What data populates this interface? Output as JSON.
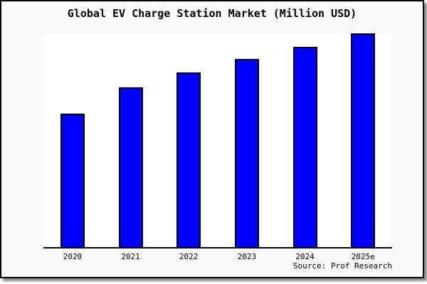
{
  "chart_data": {
    "type": "bar",
    "title": "Global EV Charge Station Market (Million USD)",
    "categories": [
      "2020",
      "2021",
      "2022",
      "2023",
      "2024",
      "2025e"
    ],
    "values": [
      188,
      225,
      246,
      265,
      282,
      301
    ],
    "value_scale_note": "no y-axis labels or gridlines shown in chart; values are relative bar heights estimated from pixels (max = 301)",
    "ylim": [
      0,
      302
    ],
    "xlabel": "",
    "ylabel": "",
    "grid": false,
    "legend": null,
    "bar_color": "#0000ff",
    "bar_border_color": "#000000",
    "plot_background": "#ffffff",
    "canvas_background": "#fafafa",
    "source": "Source: Prof Research"
  }
}
